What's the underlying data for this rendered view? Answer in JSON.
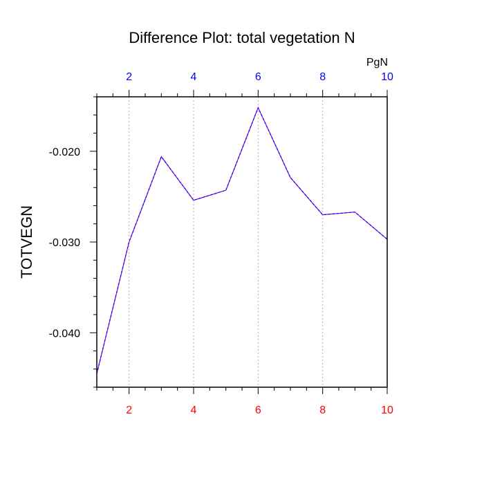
{
  "chart_data": {
    "type": "line",
    "title": "Difference Plot: total vegetation N",
    "ylabel": "TOTVEGN",
    "units_label": "PgN",
    "x": [
      1,
      2,
      3,
      4,
      5,
      6,
      7,
      8,
      9,
      10
    ],
    "series": [
      {
        "values": [
          -0.0445,
          -0.03,
          -0.0206,
          -0.0254,
          -0.0243,
          -0.0152,
          -0.0229,
          -0.027,
          -0.0267,
          -0.0297
        ],
        "color": "#9400D3",
        "overlay_color": "#0000ff"
      }
    ],
    "xlim": [
      1,
      10
    ],
    "ylim": [
      -0.046,
      -0.014
    ],
    "x_major_ticks": [
      2,
      4,
      6,
      8,
      10
    ],
    "x_tick_labels": [
      "2",
      "4",
      "6",
      "8",
      "10"
    ],
    "y_major_ticks": [
      -0.04,
      -0.03,
      -0.02
    ],
    "y_tick_labels": [
      "-0.040",
      "-0.030",
      "-0.020"
    ],
    "bottom_axis_color": "#ff0000",
    "top_axis_color": "#0000ff",
    "grid": "vertical dotted at major x ticks"
  }
}
